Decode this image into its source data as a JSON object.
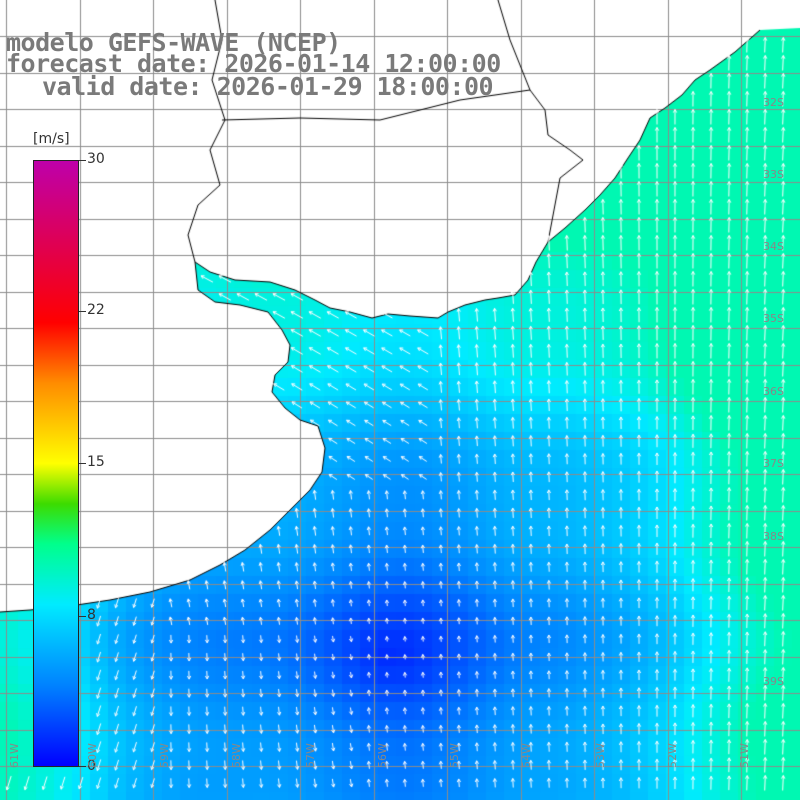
{
  "title": {
    "line1": "modelo GEFS-WAVE (NCEP)",
    "line2": "forecast date: 2026-01-14 12:00:00",
    "line3": "valid date: 2026-01-29 18:00:00"
  },
  "colorbar": {
    "unit": "[m/s]",
    "ticks": [
      {
        "label": "30",
        "value": 30
      },
      {
        "label": "22",
        "value": 22
      },
      {
        "label": "15",
        "value": 15
      },
      {
        "label": "8",
        "value": 8
      },
      {
        "label": "0",
        "value": 0
      }
    ],
    "min": 0,
    "max": 30
  },
  "latitude_labels": [
    "32S",
    "33S",
    "34S",
    "35S",
    "36S",
    "37S",
    "38S",
    "39S"
  ],
  "longitude_labels": [
    "61W",
    "60W",
    "59W",
    "58W",
    "57W",
    "56W",
    "55W",
    "54W",
    "53W",
    "52W",
    "51W"
  ],
  "colors": {
    "land": "#ffffff",
    "coast": "#000000",
    "grid": "#8c8c8c",
    "arrow": "#ffffff"
  }
}
